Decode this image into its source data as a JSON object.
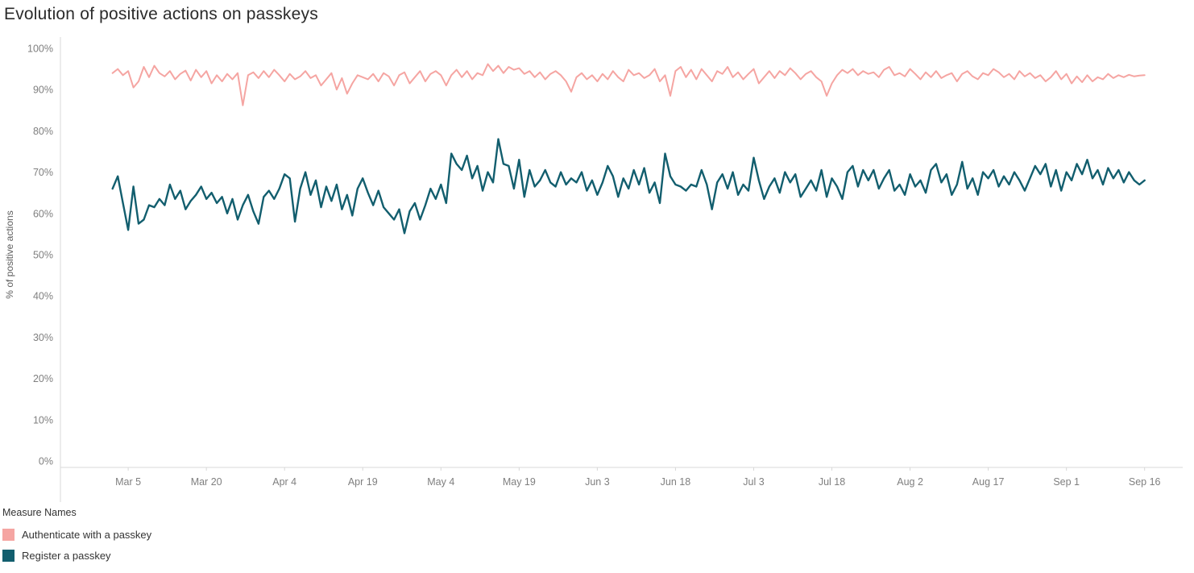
{
  "title": "Evolution of positive actions on passkeys",
  "legend": {
    "title": "Measure Names",
    "items": [
      {
        "label": "Authenticate with a passkey",
        "color": "#f5a5a2"
      },
      {
        "label": "Register a passkey",
        "color": "#125e6e"
      }
    ]
  },
  "chart_data": {
    "type": "line",
    "title": "Evolution of positive actions on passkeys",
    "xlabel": "",
    "ylabel": "% of positive actions",
    "ylim": [
      0,
      100
    ],
    "grid": false,
    "legend_position": "bottom-left",
    "x_unit": "days, index 0 = Feb 28",
    "x_domain": [
      -8,
      207
    ],
    "start_day": 2,
    "y_ticks": [
      {
        "value": 0,
        "label": "0%"
      },
      {
        "value": 10,
        "label": "10%"
      },
      {
        "value": 20,
        "label": "20%"
      },
      {
        "value": 30,
        "label": "30%"
      },
      {
        "value": 40,
        "label": "40%"
      },
      {
        "value": 50,
        "label": "50%"
      },
      {
        "value": 60,
        "label": "60%"
      },
      {
        "value": 70,
        "label": "70%"
      },
      {
        "value": 80,
        "label": "80%"
      },
      {
        "value": 90,
        "label": "90%"
      },
      {
        "value": 100,
        "label": "100%"
      }
    ],
    "x_ticks": [
      {
        "day": 5,
        "label": "Mar 5"
      },
      {
        "day": 20,
        "label": "Mar 20"
      },
      {
        "day": 35,
        "label": "Apr 4"
      },
      {
        "day": 50,
        "label": "Apr 19"
      },
      {
        "day": 65,
        "label": "May 4"
      },
      {
        "day": 80,
        "label": "May 19"
      },
      {
        "day": 95,
        "label": "Jun 3"
      },
      {
        "day": 110,
        "label": "Jun 18"
      },
      {
        "day": 125,
        "label": "Jul 3"
      },
      {
        "day": 140,
        "label": "Jul 18"
      },
      {
        "day": 155,
        "label": "Aug 2"
      },
      {
        "day": 170,
        "label": "Aug 17"
      },
      {
        "day": 185,
        "label": "Sep 1"
      },
      {
        "day": 200,
        "label": "Sep 16"
      }
    ],
    "series": [
      {
        "name": "Authenticate with a passkey",
        "color": "#f5a5a2",
        "values": [
          94.0,
          95.0,
          93.5,
          94.5,
          90.5,
          92.0,
          95.5,
          93.0,
          95.8,
          94.0,
          93.2,
          94.5,
          92.5,
          93.8,
          94.6,
          92.2,
          94.8,
          93.0,
          94.5,
          91.5,
          93.5,
          92.0,
          93.8,
          92.5,
          94.0,
          86.2,
          93.5,
          94.2,
          92.8,
          94.5,
          93.0,
          94.8,
          93.5,
          92.0,
          93.8,
          92.5,
          93.2,
          94.5,
          92.8,
          93.5,
          91.0,
          92.5,
          94.0,
          90.0,
          92.8,
          89.0,
          91.5,
          93.5,
          93.0,
          92.5,
          93.8,
          92.0,
          94.0,
          93.2,
          91.0,
          93.5,
          94.2,
          91.5,
          93.0,
          94.5,
          92.0,
          93.8,
          94.5,
          93.5,
          91.0,
          93.5,
          94.8,
          93.0,
          94.5,
          92.5,
          94.0,
          93.5,
          96.2,
          94.5,
          95.8,
          94.0,
          95.5,
          94.8,
          95.2,
          93.8,
          94.5,
          93.0,
          94.2,
          92.5,
          93.8,
          94.5,
          93.5,
          92.0,
          89.5,
          93.0,
          94.0,
          92.5,
          93.5,
          92.0,
          93.8,
          92.5,
          94.5,
          93.0,
          92.0,
          94.8,
          93.5,
          94.0,
          92.8,
          93.5,
          95.0,
          92.0,
          93.5,
          88.5,
          94.5,
          95.5,
          93.0,
          94.8,
          92.5,
          95.0,
          93.5,
          92.0,
          94.5,
          93.8,
          95.5,
          93.0,
          94.2,
          92.5,
          93.8,
          95.0,
          91.5,
          93.0,
          94.5,
          92.8,
          94.5,
          93.5,
          95.2,
          94.0,
          92.5,
          93.8,
          94.5,
          93.0,
          92.0,
          88.5,
          91.5,
          93.5,
          94.8,
          94.0,
          95.0,
          93.5,
          94.5,
          93.8,
          94.2,
          93.0,
          94.8,
          95.5,
          93.5,
          94.0,
          93.2,
          95.0,
          93.8,
          92.5,
          94.2,
          93.0,
          94.5,
          92.8,
          93.5,
          94.0,
          92.0,
          93.8,
          94.5,
          93.2,
          92.5,
          94.0,
          93.5,
          95.0,
          94.2,
          93.0,
          93.8,
          92.5,
          94.5,
          93.2,
          94.0,
          92.8,
          93.5,
          92.0,
          93.0,
          94.5,
          92.5,
          93.8,
          91.5,
          93.2,
          91.8,
          93.5,
          92.0,
          93.0,
          92.5,
          93.8,
          92.8,
          93.5,
          93.0,
          93.6,
          93.2,
          93.4,
          93.5
        ]
      },
      {
        "name": "Register a passkey",
        "color": "#125e6e",
        "values": [
          66.0,
          69.0,
          62.5,
          56.0,
          66.5,
          57.5,
          58.5,
          62.0,
          61.5,
          63.5,
          62.0,
          67.0,
          63.5,
          65.5,
          61.0,
          63.0,
          64.5,
          66.5,
          63.5,
          65.0,
          62.5,
          64.0,
          60.0,
          63.5,
          58.5,
          62.0,
          64.5,
          60.5,
          57.5,
          64.0,
          65.5,
          63.5,
          66.0,
          69.5,
          68.5,
          58.0,
          66.0,
          70.0,
          64.5,
          68.0,
          61.5,
          66.5,
          63.0,
          67.0,
          61.0,
          64.5,
          59.5,
          66.0,
          68.5,
          65.0,
          62.0,
          65.5,
          61.5,
          60.0,
          58.5,
          61.0,
          55.2,
          60.5,
          62.5,
          58.5,
          62.0,
          66.0,
          63.5,
          67.0,
          62.5,
          74.5,
          72.0,
          70.5,
          74.0,
          68.5,
          71.5,
          65.5,
          70.0,
          67.5,
          78.0,
          72.0,
          71.5,
          66.0,
          73.0,
          64.0,
          70.5,
          66.5,
          68.0,
          70.5,
          67.5,
          66.5,
          70.0,
          67.0,
          68.5,
          67.5,
          70.0,
          65.5,
          68.0,
          64.5,
          67.5,
          71.5,
          69.0,
          64.0,
          68.5,
          66.0,
          70.5,
          67.0,
          71.0,
          65.0,
          67.5,
          62.5,
          74.5,
          69.0,
          67.0,
          66.5,
          65.5,
          67.0,
          66.5,
          70.5,
          67.0,
          61.0,
          67.5,
          69.5,
          66.0,
          70.0,
          64.5,
          67.0,
          65.5,
          73.5,
          68.0,
          63.5,
          66.5,
          68.5,
          65.0,
          70.0,
          67.5,
          69.5,
          64.0,
          66.0,
          68.0,
          65.5,
          70.5,
          64.0,
          68.5,
          66.5,
          63.5,
          70.0,
          71.5,
          66.5,
          70.5,
          68.0,
          70.5,
          66.0,
          68.5,
          70.5,
          65.5,
          67.0,
          64.5,
          69.5,
          66.5,
          68.0,
          65.0,
          70.5,
          72.0,
          67.5,
          69.5,
          64.5,
          67.0,
          72.5,
          66.0,
          68.5,
          64.5,
          70.0,
          68.5,
          70.5,
          66.5,
          69.0,
          67.0,
          70.0,
          68.0,
          65.5,
          68.5,
          71.5,
          69.5,
          72.0,
          66.5,
          70.5,
          65.5,
          70.0,
          68.0,
          72.0,
          69.5,
          73.0,
          68.5,
          70.5,
          67.0,
          71.0,
          68.5,
          70.5,
          67.5,
          70.0,
          68.0,
          67.0,
          68.0
        ]
      }
    ]
  }
}
